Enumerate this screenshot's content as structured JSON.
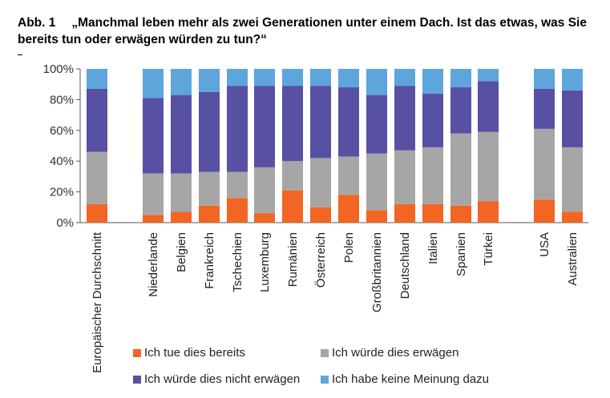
{
  "figure": {
    "label": "Abb. 1",
    "title": "„Manchmal leben mehr als zwei Generationen unter einem Dach. Ist das etwas, was Sie bereits tun oder erwägen würden zu tun?“"
  },
  "colors": {
    "tue_bereits": "#f26522",
    "wuerde_erwaegen": "#a6a6a6",
    "nicht_erwaegen": "#5750a3",
    "keine_meinung": "#5ea5dc"
  },
  "chart_data": {
    "type": "bar",
    "stacked": true,
    "percent_axis": true,
    "title": "„Manchmal leben mehr als zwei Generationen unter einem Dach. Ist das etwas, was Sie bereits tun oder erwägen würden zu tun?“",
    "categories": [
      "Europäischer Durchschnitt",
      "Niederlande",
      "Belgien",
      "Frankreich",
      "Tschechien",
      "Luxemburg",
      "Rumänien",
      "Österreich",
      "Polen",
      "Großbritannien",
      "Deutschland",
      "Italien",
      "Spanien",
      "Türkei",
      "USA",
      "Australien"
    ],
    "groups": [
      [
        0
      ],
      [
        1,
        2,
        3,
        4,
        5,
        6,
        7,
        8,
        9,
        10,
        11,
        12,
        13
      ],
      [
        14,
        15
      ]
    ],
    "y_ticks": [
      "0%",
      "20%",
      "40%",
      "60%",
      "80%",
      "100%"
    ],
    "ylim": [
      0,
      100
    ],
    "series": [
      {
        "name": "Ich tue dies bereits",
        "color_key": "tue_bereits",
        "values": [
          12,
          5,
          7,
          11,
          16,
          6,
          21,
          10,
          18,
          8,
          12,
          12,
          11,
          14,
          15,
          7
        ]
      },
      {
        "name": "Ich würde dies erwägen",
        "color_key": "wuerde_erwaegen",
        "values": [
          34,
          27,
          25,
          22,
          17,
          30,
          19,
          32,
          25,
          37,
          35,
          37,
          47,
          45,
          46,
          42
        ]
      },
      {
        "name": "Ich würde dies nicht erwägen",
        "color_key": "nicht_erwaegen",
        "values": [
          41,
          49,
          51,
          52,
          56,
          53,
          49,
          47,
          45,
          38,
          42,
          35,
          30,
          33,
          26,
          37
        ]
      },
      {
        "name": "Ich habe keine Meinung dazu",
        "color_key": "keine_meinung",
        "values": [
          13,
          19,
          17,
          15,
          11,
          11,
          11,
          11,
          12,
          17,
          11,
          16,
          12,
          8,
          13,
          14
        ]
      }
    ],
    "grid": false,
    "legend_position": "bottom"
  }
}
